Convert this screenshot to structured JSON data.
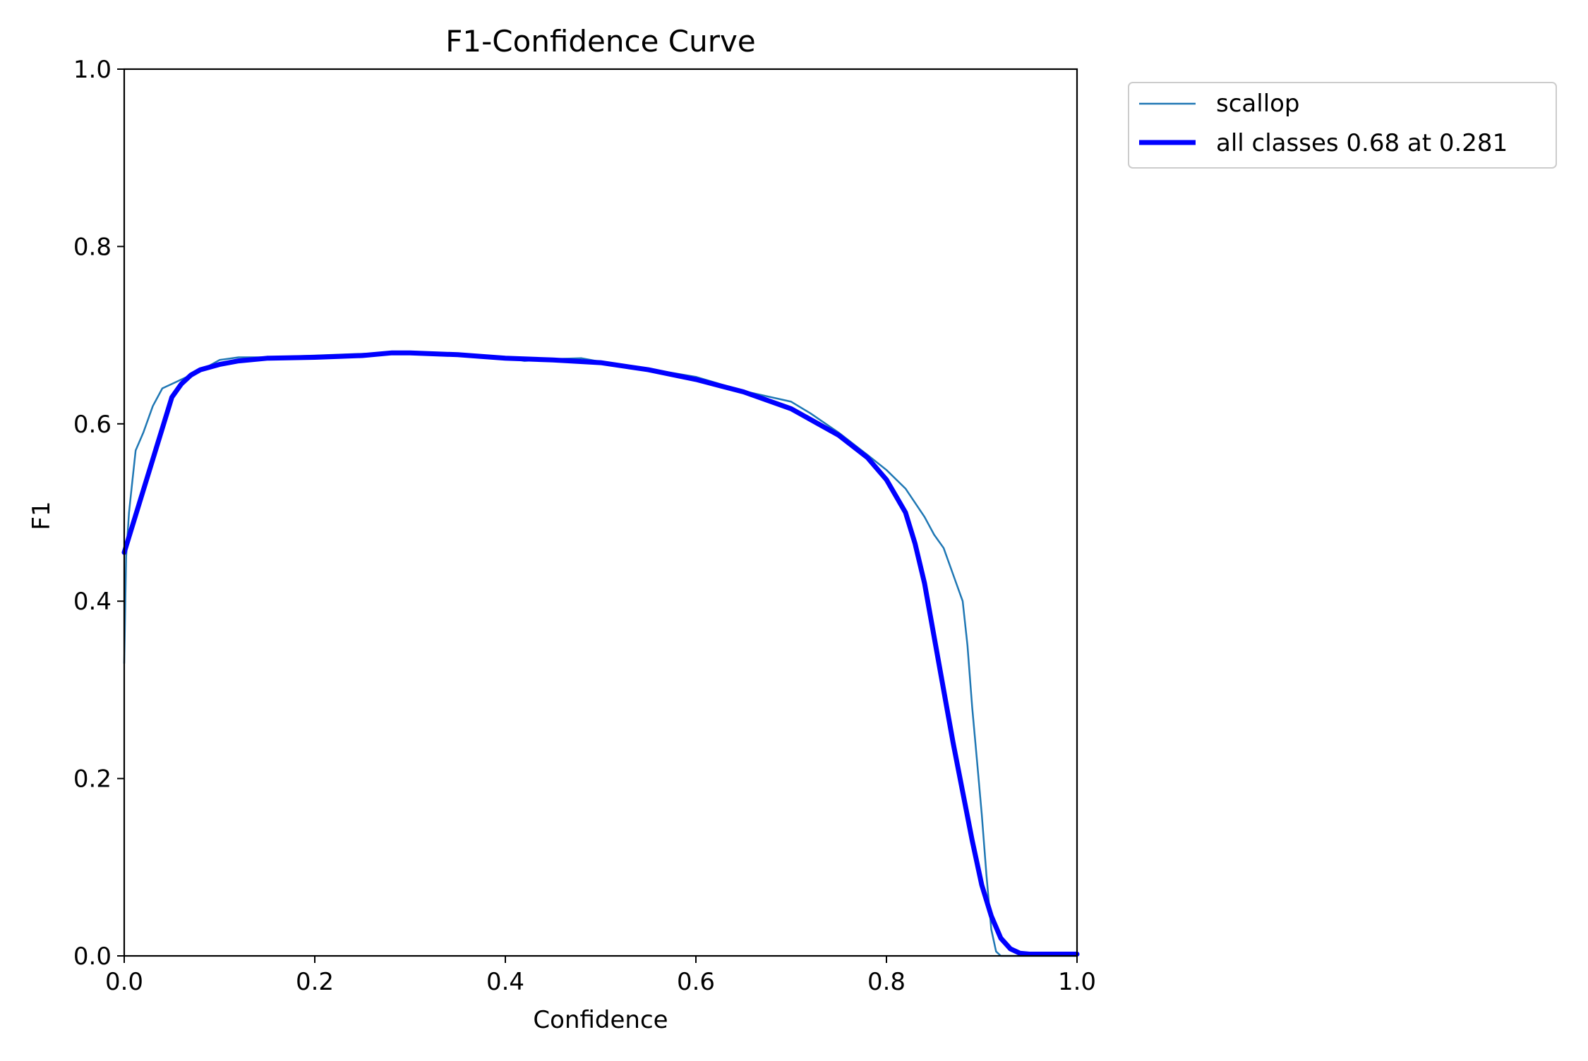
{
  "chart_data": {
    "type": "line",
    "title": "F1-Confidence Curve",
    "xlabel": "Confidence",
    "ylabel": "F1",
    "xlim": [
      0.0,
      1.0
    ],
    "ylim": [
      0.0,
      1.0
    ],
    "x_ticks": [
      "0.0",
      "0.2",
      "0.4",
      "0.6",
      "0.8",
      "1.0"
    ],
    "y_ticks": [
      "0.0",
      "0.2",
      "0.4",
      "0.6",
      "0.8",
      "1.0"
    ],
    "grid": false,
    "legend_position": "outside-top-right",
    "series": [
      {
        "name": "scallop",
        "color": "#1f77b4",
        "style": "thin",
        "points": [
          [
            0.0,
            0.33
          ],
          [
            0.002,
            0.45
          ],
          [
            0.005,
            0.5
          ],
          [
            0.008,
            0.53
          ],
          [
            0.012,
            0.57
          ],
          [
            0.02,
            0.59
          ],
          [
            0.03,
            0.62
          ],
          [
            0.04,
            0.64
          ],
          [
            0.05,
            0.645
          ],
          [
            0.06,
            0.65
          ],
          [
            0.08,
            0.66
          ],
          [
            0.1,
            0.672
          ],
          [
            0.12,
            0.675
          ],
          [
            0.15,
            0.675
          ],
          [
            0.2,
            0.677
          ],
          [
            0.25,
            0.679
          ],
          [
            0.28,
            0.68
          ],
          [
            0.3,
            0.679
          ],
          [
            0.35,
            0.677
          ],
          [
            0.4,
            0.675
          ],
          [
            0.42,
            0.671
          ],
          [
            0.45,
            0.673
          ],
          [
            0.48,
            0.674
          ],
          [
            0.5,
            0.67
          ],
          [
            0.55,
            0.662
          ],
          [
            0.6,
            0.653
          ],
          [
            0.65,
            0.637
          ],
          [
            0.7,
            0.625
          ],
          [
            0.72,
            0.612
          ],
          [
            0.75,
            0.59
          ],
          [
            0.78,
            0.565
          ],
          [
            0.8,
            0.548
          ],
          [
            0.82,
            0.527
          ],
          [
            0.84,
            0.495
          ],
          [
            0.85,
            0.475
          ],
          [
            0.86,
            0.46
          ],
          [
            0.87,
            0.43
          ],
          [
            0.88,
            0.4
          ],
          [
            0.885,
            0.35
          ],
          [
            0.89,
            0.28
          ],
          [
            0.895,
            0.22
          ],
          [
            0.9,
            0.16
          ],
          [
            0.905,
            0.09
          ],
          [
            0.91,
            0.03
          ],
          [
            0.915,
            0.005
          ],
          [
            0.92,
            0.0
          ],
          [
            0.95,
            0.0
          ],
          [
            1.0,
            0.0
          ]
        ]
      },
      {
        "name": "all classes 0.68 at 0.281",
        "color": "#0000ff",
        "style": "thick",
        "points": [
          [
            0.0,
            0.455
          ],
          [
            0.01,
            0.49
          ],
          [
            0.02,
            0.525
          ],
          [
            0.03,
            0.56
          ],
          [
            0.04,
            0.595
          ],
          [
            0.05,
            0.63
          ],
          [
            0.06,
            0.645
          ],
          [
            0.07,
            0.655
          ],
          [
            0.08,
            0.661
          ],
          [
            0.1,
            0.667
          ],
          [
            0.12,
            0.671
          ],
          [
            0.15,
            0.674
          ],
          [
            0.2,
            0.675
          ],
          [
            0.25,
            0.677
          ],
          [
            0.281,
            0.68
          ],
          [
            0.3,
            0.68
          ],
          [
            0.35,
            0.678
          ],
          [
            0.4,
            0.674
          ],
          [
            0.45,
            0.672
          ],
          [
            0.5,
            0.669
          ],
          [
            0.55,
            0.661
          ],
          [
            0.6,
            0.65
          ],
          [
            0.65,
            0.636
          ],
          [
            0.7,
            0.617
          ],
          [
            0.75,
            0.587
          ],
          [
            0.78,
            0.562
          ],
          [
            0.8,
            0.537
          ],
          [
            0.82,
            0.5
          ],
          [
            0.83,
            0.465
          ],
          [
            0.84,
            0.42
          ],
          [
            0.85,
            0.36
          ],
          [
            0.86,
            0.3
          ],
          [
            0.87,
            0.24
          ],
          [
            0.88,
            0.185
          ],
          [
            0.89,
            0.13
          ],
          [
            0.9,
            0.08
          ],
          [
            0.91,
            0.045
          ],
          [
            0.92,
            0.02
          ],
          [
            0.93,
            0.008
          ],
          [
            0.94,
            0.003
          ],
          [
            0.95,
            0.002
          ],
          [
            0.96,
            0.002
          ],
          [
            1.0,
            0.002
          ]
        ]
      }
    ]
  }
}
